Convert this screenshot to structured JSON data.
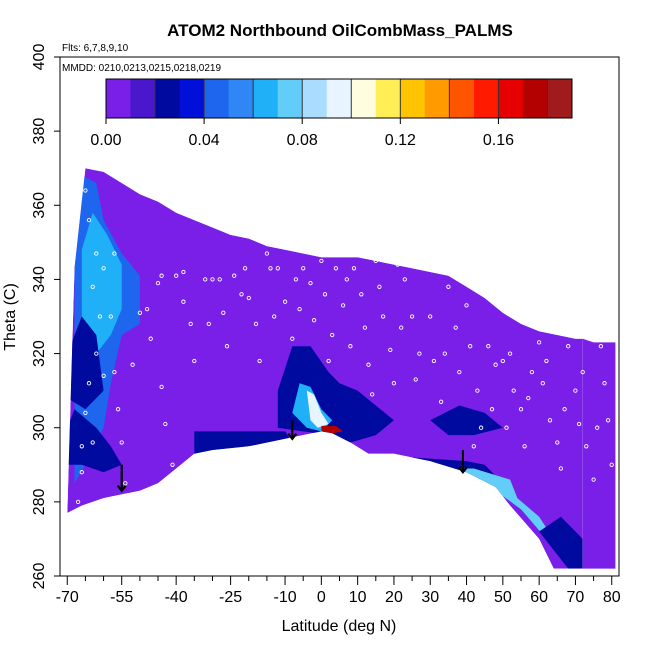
{
  "chart_data": {
    "type": "heatmap",
    "title": "ATOM2 Northbound OilCombMass_PALMS",
    "flights_note": "Flts: 6,7,8,9,10",
    "dates_note": "MMDD: 0210,0213,0215,0218,0219",
    "xlabel": "Latitude (deg N)",
    "ylabel": "Theta (C)",
    "xlim": [
      -70,
      80
    ],
    "ylim": [
      260,
      400
    ],
    "x_ticks_major": [
      -70,
      -55,
      -40,
      -25,
      -10,
      0,
      10,
      20,
      30,
      40,
      50,
      60,
      70,
      80
    ],
    "x_tick_labels": [
      "-70",
      "-55",
      "-40",
      "-25",
      "-10",
      "0",
      "10",
      "20",
      "30",
      "40",
      "50",
      "60",
      "70",
      "80"
    ],
    "x_ticks_minor": [
      -65,
      -60,
      -50,
      -45,
      -35,
      -30,
      -20,
      -15,
      -5,
      5,
      15,
      25,
      35,
      45,
      55,
      65,
      75
    ],
    "y_ticks": [
      260,
      280,
      300,
      320,
      340,
      360,
      380,
      400
    ],
    "y_tick_labels": [
      "260",
      "280",
      "300",
      "320",
      "340",
      "360",
      "380",
      "400"
    ],
    "colorbar": {
      "range": [
        0,
        0.19
      ],
      "tick_values": [
        0.0,
        0.04,
        0.08,
        0.12,
        0.16
      ],
      "tick_labels": [
        "0.00",
        "0.04",
        "0.08",
        "0.12",
        "0.16"
      ],
      "boundaries": [
        0,
        0.01,
        0.02,
        0.03,
        0.04,
        0.05,
        0.06,
        0.07,
        0.08,
        0.09,
        0.1,
        0.11,
        0.12,
        0.13,
        0.14,
        0.15,
        0.16,
        0.17,
        0.18,
        0.19
      ],
      "colors": [
        "#7a1fe8",
        "#4a17cc",
        "#000a9e",
        "#0010d8",
        "#1e66ee",
        "#2f86f4",
        "#1fb0f8",
        "#63cdf9",
        "#aadcff",
        "#e8f4ff",
        "#fffde0",
        "#ffee55",
        "#ffc300",
        "#ff9a00",
        "#ff5500",
        "#ff1a00",
        "#e60000",
        "#b30000",
        "#a01c1c"
      ]
    },
    "background_color": "#7a1fe8",
    "top_boundary": [
      [
        -68,
        343
      ],
      [
        -65,
        370
      ],
      [
        -60,
        369
      ],
      [
        -55,
        366
      ],
      [
        -50,
        363
      ],
      [
        -45,
        361
      ],
      [
        -40,
        358
      ],
      [
        -35,
        356
      ],
      [
        -30,
        354
      ],
      [
        -25,
        352
      ],
      [
        -20,
        351
      ],
      [
        -15,
        349
      ],
      [
        -10,
        348
      ],
      [
        -5,
        347
      ],
      [
        0,
        346
      ],
      [
        5,
        346
      ],
      [
        10,
        346
      ],
      [
        15,
        345
      ],
      [
        20,
        344
      ],
      [
        25,
        343
      ],
      [
        30,
        342
      ],
      [
        35,
        341
      ],
      [
        40,
        338
      ],
      [
        45,
        335
      ],
      [
        50,
        331
      ],
      [
        55,
        328
      ],
      [
        60,
        326
      ],
      [
        65,
        325
      ],
      [
        70,
        324
      ],
      [
        72,
        324
      ]
    ],
    "bottom_boundary": [
      [
        72,
        262
      ],
      [
        68,
        262
      ],
      [
        64,
        262
      ],
      [
        60,
        270
      ],
      [
        52,
        279
      ],
      [
        48,
        284
      ],
      [
        40,
        288
      ],
      [
        30,
        291
      ],
      [
        20,
        293
      ],
      [
        13,
        293
      ],
      [
        8,
        296
      ],
      [
        3,
        298.5
      ],
      [
        0,
        299
      ],
      [
        -10,
        297
      ],
      [
        -20,
        295
      ],
      [
        -30,
        294
      ],
      [
        -35,
        293
      ],
      [
        -40,
        289
      ],
      [
        -45,
        285
      ],
      [
        -50,
        283
      ],
      [
        -55,
        282
      ],
      [
        -60,
        281
      ],
      [
        -66,
        279
      ],
      [
        -70,
        277
      ]
    ],
    "right_edge_boundary": [
      [
        72,
        324
      ],
      [
        75,
        323
      ],
      [
        80,
        323
      ],
      [
        81,
        323
      ],
      [
        81,
        262
      ],
      [
        72,
        262
      ]
    ],
    "blobs": [
      {
        "type": "polygon",
        "value": 0.04,
        "pts": [
          [
            -68,
            345
          ],
          [
            -66,
            368
          ],
          [
            -62,
            366
          ],
          [
            -60,
            356
          ],
          [
            -55,
            347
          ],
          [
            -50,
            341
          ],
          [
            -50,
            328
          ],
          [
            -55,
            325
          ],
          [
            -58,
            312
          ],
          [
            -60,
            300
          ],
          [
            -65,
            290
          ],
          [
            -68,
            285
          ]
        ]
      },
      {
        "type": "polygon",
        "value": 0.065,
        "pts": [
          [
            -66,
            348
          ],
          [
            -63,
            358
          ],
          [
            -59,
            352
          ],
          [
            -55,
            344
          ],
          [
            -55,
            332
          ],
          [
            -58,
            325
          ],
          [
            -62,
            320
          ],
          [
            -66,
            322
          ]
        ]
      },
      {
        "type": "polygon",
        "value": 0.025,
        "pts": [
          [
            -70,
            300
          ],
          [
            -68,
            305
          ],
          [
            -62,
            300
          ],
          [
            -58,
            295
          ],
          [
            -55,
            290
          ],
          [
            -60,
            288
          ],
          [
            -66,
            290
          ],
          [
            -70,
            290
          ]
        ]
      },
      {
        "type": "polygon",
        "value": 0.02,
        "pts": [
          [
            -70,
            320
          ],
          [
            -66,
            330
          ],
          [
            -62,
            325
          ],
          [
            -60,
            310
          ],
          [
            -65,
            305
          ],
          [
            -70,
            308
          ]
        ]
      },
      {
        "type": "polygon",
        "value": 0.025,
        "pts": [
          [
            -35,
            299
          ],
          [
            -10,
            299
          ],
          [
            -8,
            296
          ],
          [
            -20,
            295
          ],
          [
            -35,
            293
          ]
        ]
      },
      {
        "type": "polygon",
        "value": 0.02,
        "pts": [
          [
            -8,
            322
          ],
          [
            -3,
            322
          ],
          [
            2,
            315
          ],
          [
            5,
            312
          ],
          [
            10,
            310
          ],
          [
            15,
            306
          ],
          [
            20,
            302
          ],
          [
            15,
            298
          ],
          [
            8,
            296
          ],
          [
            3,
            298
          ],
          [
            -5,
            299
          ],
          [
            -12,
            300
          ],
          [
            -12,
            310
          ]
        ]
      },
      {
        "type": "polygon",
        "value": 0.065,
        "pts": [
          [
            -6,
            312
          ],
          [
            -3,
            311
          ],
          [
            0,
            305
          ],
          [
            3,
            302
          ],
          [
            0,
            299
          ],
          [
            -4,
            300
          ],
          [
            -8,
            304
          ]
        ]
      },
      {
        "type": "polygon",
        "value": 0.09,
        "pts": [
          [
            -4,
            310
          ],
          [
            -2,
            309
          ],
          [
            0,
            304
          ],
          [
            2,
            301
          ],
          [
            -1,
            300
          ],
          [
            -3,
            302
          ]
        ]
      },
      {
        "type": "polygon",
        "value": 0.17,
        "pts": [
          [
            0,
            300.5
          ],
          [
            4,
            300.5
          ],
          [
            6,
            299
          ],
          [
            3,
            298.5
          ],
          [
            0,
            299
          ]
        ]
      },
      {
        "type": "polygon",
        "value": 0.025,
        "pts": [
          [
            10,
            292
          ],
          [
            25,
            292
          ],
          [
            40,
            291
          ],
          [
            45,
            290
          ],
          [
            50,
            285
          ],
          [
            47,
            282
          ],
          [
            40,
            286
          ],
          [
            30,
            290
          ],
          [
            20,
            292
          ]
        ]
      },
      {
        "type": "polygon",
        "value": 0.02,
        "pts": [
          [
            30,
            302
          ],
          [
            38,
            306
          ],
          [
            45,
            304
          ],
          [
            50,
            300
          ],
          [
            42,
            298
          ],
          [
            35,
            298
          ]
        ]
      },
      {
        "type": "polygon",
        "value": 0.07,
        "pts": [
          [
            38,
            289
          ],
          [
            42,
            289
          ],
          [
            52,
            286
          ],
          [
            54,
            281
          ],
          [
            60,
            276
          ],
          [
            64,
            270
          ],
          [
            66,
            265
          ],
          [
            62,
            270
          ],
          [
            55,
            278
          ],
          [
            48,
            283
          ]
        ]
      },
      {
        "type": "polygon",
        "value": 0.025,
        "pts": [
          [
            60,
            272
          ],
          [
            68,
            262
          ],
          [
            72,
            262
          ],
          [
            72,
            270
          ],
          [
            66,
            276
          ]
        ]
      },
      {
        "type": "polygon",
        "value": 0.08,
        "pts": [
          [
            76,
            268
          ],
          [
            80,
            268
          ],
          [
            80,
            278
          ],
          [
            76,
            280
          ]
        ]
      }
    ],
    "points": [
      [
        -65,
        364
      ],
      [
        -64,
        356
      ],
      [
        -62,
        347
      ],
      [
        -63,
        338
      ],
      [
        -61,
        330
      ],
      [
        -62,
        320
      ],
      [
        -64,
        312
      ],
      [
        -65,
        304
      ],
      [
        -63,
        296
      ],
      [
        -66,
        288
      ],
      [
        -60,
        343
      ],
      [
        -58,
        330
      ],
      [
        -57,
        315
      ],
      [
        -56,
        305
      ],
      [
        -55,
        296
      ],
      [
        -54,
        285
      ],
      [
        -52,
        317
      ],
      [
        -50,
        331
      ],
      [
        -48,
        332
      ],
      [
        -47,
        324
      ],
      [
        -45,
        339
      ],
      [
        -44,
        311
      ],
      [
        -43,
        301
      ],
      [
        -41,
        290
      ],
      [
        -40,
        341
      ],
      [
        -38,
        334
      ],
      [
        -36,
        328
      ],
      [
        -35,
        318
      ],
      [
        -32,
        340
      ],
      [
        -30,
        340
      ],
      [
        -28,
        340
      ],
      [
        -27,
        331
      ],
      [
        -26,
        322
      ],
      [
        -24,
        341
      ],
      [
        -22,
        336
      ],
      [
        -20,
        335
      ],
      [
        -18,
        328
      ],
      [
        -17,
        318
      ],
      [
        -15,
        347
      ],
      [
        -14,
        343
      ],
      [
        -12,
        343
      ],
      [
        -10,
        334
      ],
      [
        -8,
        324
      ],
      [
        -6,
        332
      ],
      [
        -5,
        343
      ],
      [
        -3,
        339
      ],
      [
        -2,
        329
      ],
      [
        0,
        345
      ],
      [
        1,
        336
      ],
      [
        3,
        325
      ],
      [
        4,
        343
      ],
      [
        6,
        333
      ],
      [
        8,
        322
      ],
      [
        9,
        343
      ],
      [
        11,
        336
      ],
      [
        12,
        327
      ],
      [
        13,
        317
      ],
      [
        15,
        345
      ],
      [
        16,
        338
      ],
      [
        17,
        330
      ],
      [
        19,
        321
      ],
      [
        20,
        312
      ],
      [
        21,
        344
      ],
      [
        23,
        340
      ],
      [
        25,
        330
      ],
      [
        27,
        320
      ],
      [
        29,
        344
      ],
      [
        30,
        330
      ],
      [
        31,
        318
      ],
      [
        33,
        307
      ],
      [
        35,
        338
      ],
      [
        37,
        327
      ],
      [
        40,
        333
      ],
      [
        41,
        322
      ],
      [
        43,
        310
      ],
      [
        44,
        300
      ],
      [
        46,
        322
      ],
      [
        48,
        317
      ],
      [
        50,
        318
      ],
      [
        52,
        320
      ],
      [
        53,
        310
      ],
      [
        55,
        305
      ],
      [
        56,
        295
      ],
      [
        58,
        315
      ],
      [
        60,
        323
      ],
      [
        61,
        312
      ],
      [
        63,
        302
      ],
      [
        65,
        296
      ],
      [
        66,
        289
      ],
      [
        68,
        322
      ],
      [
        70,
        310
      ],
      [
        71,
        301
      ],
      [
        73,
        295
      ],
      [
        75,
        286
      ],
      [
        77,
        322
      ],
      [
        78,
        312
      ],
      [
        79,
        302
      ],
      [
        -67,
        280
      ],
      [
        -66,
        295
      ],
      [
        -60,
        314
      ],
      [
        -57,
        347
      ],
      [
        -44,
        341
      ],
      [
        -38,
        342
      ],
      [
        -31,
        328
      ],
      [
        -21,
        343
      ],
      [
        -13,
        330
      ],
      [
        -7,
        340
      ],
      [
        2,
        318
      ],
      [
        7,
        340
      ],
      [
        14,
        309
      ],
      [
        22,
        327
      ],
      [
        26,
        313
      ],
      [
        34,
        320
      ],
      [
        38,
        315
      ],
      [
        42,
        295
      ],
      [
        47,
        305
      ],
      [
        51,
        300
      ],
      [
        57,
        308
      ],
      [
        62,
        318
      ],
      [
        67,
        305
      ],
      [
        72,
        315
      ],
      [
        76,
        300
      ],
      [
        80,
        290
      ]
    ],
    "arrows": [
      [
        -55,
        290,
        283
      ],
      [
        -8,
        302,
        297
      ],
      [
        39,
        294,
        288
      ]
    ]
  }
}
